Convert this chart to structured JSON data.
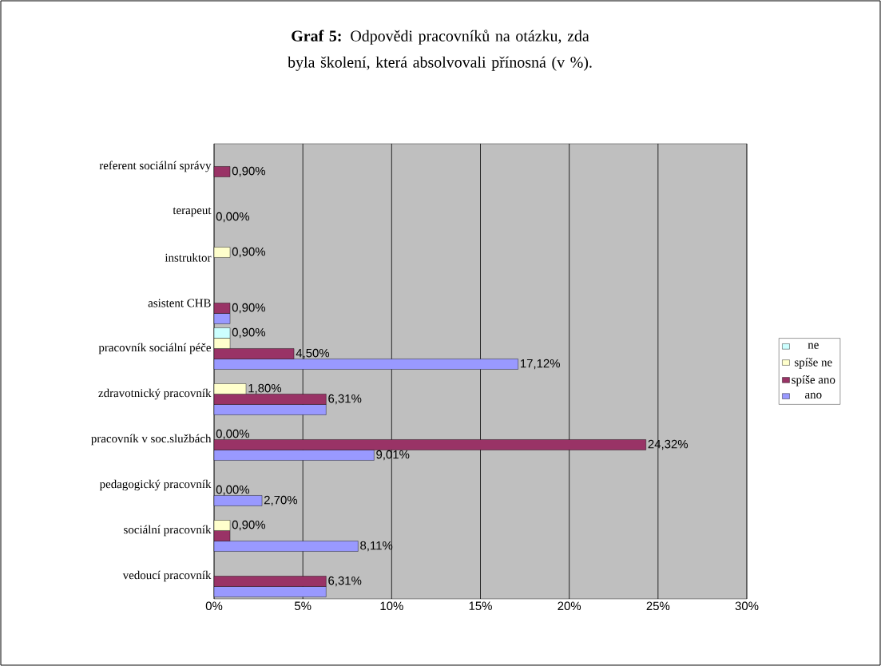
{
  "chart_data": {
    "type": "bar",
    "orientation": "horizontal",
    "title": "**Graf 5:** Odpovědi pracovníků na otázku, zda byla školení, která absolvovali přínosná (v %).",
    "categories": [
      "referent sociální správy",
      "terapeut",
      "instruktor",
      "asistent CHB",
      "pracovník sociální péče",
      "zdravotnický pracovník",
      "pracovník v soc.službách",
      "pedagogický pracovník",
      "sociální pracovník",
      "vedoucí pracovník"
    ],
    "series": [
      {
        "name": "ano",
        "color": "#9999ff",
        "values": [
          0,
          0,
          0,
          0.9,
          17.12,
          6.31,
          9.01,
          2.7,
          8.11,
          6.31
        ],
        "value_labels": [
          null,
          null,
          null,
          null,
          "17,12%",
          null,
          "9,01%",
          "2,70%",
          "8,11%",
          null
        ]
      },
      {
        "name": "spíše ano",
        "color": "#993366",
        "values": [
          0.9,
          0,
          0,
          0.9,
          4.5,
          6.31,
          24.32,
          0,
          0.9,
          6.31
        ],
        "value_labels": [
          "0,90%",
          "0,00%",
          null,
          "0,90%",
          "4,50%",
          "6,31%",
          "24,32%",
          "0,00%",
          null,
          "6,31%"
        ]
      },
      {
        "name": "spíše ne",
        "color": "#ffffcc",
        "values": [
          0,
          0,
          0.9,
          0,
          0.9,
          1.8,
          0,
          0,
          0.9,
          0
        ],
        "value_labels": [
          null,
          null,
          "0,90%",
          null,
          null,
          "1,80%",
          "0,00%",
          null,
          "0,90%",
          null
        ]
      },
      {
        "name": "ne",
        "color": "#ccffff",
        "values": [
          0,
          0,
          0,
          0,
          0.9,
          0,
          0,
          0,
          0,
          0
        ],
        "value_labels": [
          null,
          null,
          null,
          null,
          "0,90%",
          null,
          null,
          null,
          null,
          null
        ]
      }
    ],
    "xlim": [
      0,
      30
    ],
    "xticks": [
      {
        "value": 0,
        "label": "0%"
      },
      {
        "value": 5,
        "label": "5%"
      },
      {
        "value": 10,
        "label": "10%"
      },
      {
        "value": 15,
        "label": "15%"
      },
      {
        "value": 20,
        "label": "20%"
      },
      {
        "value": 25,
        "label": "25%"
      },
      {
        "value": 30,
        "label": "30%"
      }
    ],
    "grid": "x",
    "legend": "right"
  }
}
